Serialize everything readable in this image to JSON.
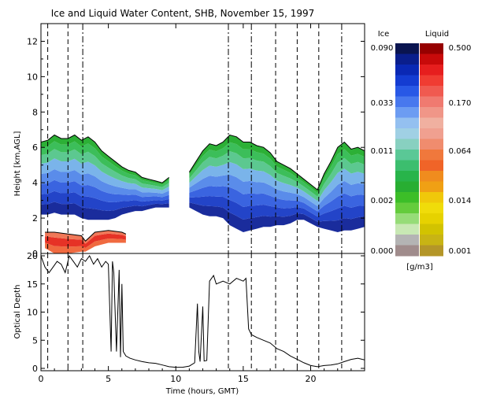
{
  "chart_data": [
    {
      "type": "heatmap",
      "title": "Ice and Liquid Water Content, SHB, November 15, 1997",
      "xlabel": "Time (hours, GMT)",
      "ylabel": "Height [km,AGL]",
      "xlim": [
        0,
        24
      ],
      "ylim": [
        0,
        13
      ],
      "yticks": [
        0,
        2,
        4,
        6,
        8,
        10,
        12
      ],
      "xticks": [
        0,
        5,
        10,
        15,
        20
      ],
      "grid": false,
      "ice_cloud": {
        "time": [
          0.0,
          0.5,
          1.0,
          1.5,
          2.0,
          2.5,
          3.0,
          3.5,
          4.0,
          4.5,
          5.0,
          5.5,
          6.0,
          6.5,
          7.0,
          7.5,
          8.0,
          8.5,
          9.0,
          9.5,
          9.6,
          10.0,
          10.5,
          11.0,
          11.5,
          12.0,
          12.5,
          13.0,
          13.5,
          14.0,
          14.5,
          15.0,
          15.5,
          16.0,
          16.5,
          17.0,
          17.5,
          18.0,
          18.5,
          19.0,
          19.5,
          20.0,
          20.5,
          21.0,
          21.5,
          22.0,
          22.5,
          23.0,
          23.5,
          24.0
        ],
        "top_km": [
          6.3,
          6.4,
          6.7,
          6.5,
          6.5,
          6.7,
          6.4,
          6.6,
          6.3,
          5.8,
          5.5,
          5.2,
          4.9,
          4.7,
          4.6,
          4.3,
          4.2,
          4.1,
          4.0,
          4.3,
          null,
          null,
          null,
          4.6,
          5.2,
          5.8,
          6.2,
          6.1,
          6.3,
          6.7,
          6.6,
          6.3,
          6.3,
          6.1,
          6.0,
          5.7,
          5.2,
          5.0,
          4.8,
          4.5,
          4.2,
          3.9,
          3.6,
          4.5,
          5.2,
          6.0,
          6.3,
          5.9,
          6.0,
          5.8
        ],
        "base_km": [
          2.2,
          2.2,
          2.3,
          2.2,
          2.2,
          2.2,
          2.0,
          1.9,
          1.9,
          1.9,
          1.9,
          2.0,
          2.2,
          2.3,
          2.4,
          2.4,
          2.5,
          2.6,
          2.6,
          2.6,
          null,
          null,
          null,
          2.6,
          2.4,
          2.2,
          2.1,
          2.1,
          2.0,
          1.6,
          1.4,
          1.2,
          1.3,
          1.4,
          1.5,
          1.5,
          1.6,
          1.6,
          1.7,
          1.9,
          1.9,
          1.7,
          1.5,
          1.4,
          1.3,
          1.2,
          1.3,
          1.3,
          1.4,
          1.5
        ]
      },
      "liquid_cloud": {
        "time": [
          0.3,
          1.0,
          2.0,
          3.0,
          3.3,
          4.0,
          5.0,
          6.0,
          6.3
        ],
        "top_km": [
          1.2,
          1.2,
          1.1,
          1.0,
          0.7,
          1.2,
          1.3,
          1.2,
          1.1
        ],
        "base_km": [
          0.3,
          0.0,
          0.0,
          0.1,
          0.1,
          0.4,
          0.6,
          0.6,
          0.6
        ]
      },
      "lidar_dash_lines_hours": [
        0.5,
        2.0,
        3.1,
        13.9,
        15.6,
        17.4,
        19.0,
        20.6,
        22.3
      ]
    },
    {
      "type": "line",
      "xlabel": "Time (hours, GMT)",
      "ylabel": "Optical Depth",
      "xlim": [
        0,
        24
      ],
      "ylim": [
        0,
        20
      ],
      "yticks": [
        0,
        5,
        10,
        15,
        20
      ],
      "xticks": [
        0,
        5,
        10,
        15,
        20
      ],
      "x": [
        0.0,
        0.3,
        0.6,
        0.9,
        1.2,
        1.5,
        1.8,
        2.1,
        2.4,
        2.7,
        3.0,
        3.3,
        3.6,
        3.9,
        4.2,
        4.5,
        4.8,
        5.0,
        5.2,
        5.3,
        5.4,
        5.6,
        5.8,
        5.9,
        6.0,
        6.1,
        6.3,
        6.6,
        7.0,
        7.5,
        8.0,
        8.5,
        9.0,
        9.5,
        10.0,
        10.5,
        11.0,
        11.4,
        11.6,
        11.7,
        11.8,
        12.0,
        12.1,
        12.3,
        12.5,
        12.8,
        13.0,
        13.5,
        14.0,
        14.5,
        15.0,
        15.2,
        15.4,
        15.6,
        16.0,
        16.5,
        17.0,
        17.5,
        18.0,
        18.5,
        19.0,
        19.5,
        20.0,
        20.5,
        21.0,
        21.5,
        22.0,
        22.5,
        23.0,
        23.5,
        24.0
      ],
      "y": [
        20.0,
        18.0,
        17.0,
        18.0,
        19.0,
        18.5,
        17.0,
        20.0,
        19.0,
        18.0,
        19.5,
        19.0,
        20.0,
        18.5,
        19.5,
        18.0,
        19.0,
        18.5,
        3.0,
        19.0,
        17.0,
        3.0,
        17.5,
        2.0,
        15.0,
        3.0,
        2.2,
        1.8,
        1.5,
        1.2,
        1.0,
        0.9,
        0.6,
        0.3,
        0.2,
        0.2,
        0.4,
        1.0,
        11.5,
        3.0,
        1.2,
        11.0,
        1.3,
        1.4,
        15.5,
        16.5,
        15.0,
        15.5,
        15.0,
        16.0,
        15.5,
        16.0,
        7.0,
        6.0,
        5.5,
        5.0,
        4.5,
        3.5,
        3.0,
        2.2,
        1.6,
        1.0,
        0.5,
        0.3,
        0.5,
        0.6,
        0.8,
        1.2,
        1.6,
        1.8,
        1.5
      ]
    }
  ],
  "colorbar": {
    "ice_header": "Ice",
    "liquid_header": "Liquid",
    "ice_labels": [
      "0.090",
      "0.033",
      "0.011",
      "0.002",
      "0.000"
    ],
    "liquid_labels": [
      "0.500",
      "0.170",
      "0.064",
      "0.014",
      "0.001"
    ],
    "units": "[g/m3]",
    "ice_colors": [
      "#0a1450",
      "#0a1e8c",
      "#0a28b4",
      "#143cd2",
      "#2858e6",
      "#4878ee",
      "#6c9cf2",
      "#94c0f0",
      "#a0d0e4",
      "#88d0c0",
      "#5ac896",
      "#3cbe6e",
      "#28b44a",
      "#28ae32",
      "#3cbe28",
      "#64cc3c",
      "#96dc78",
      "#c8e8b4",
      "#b4b4b4",
      "#a08c8c"
    ],
    "liquid_colors": [
      "#960000",
      "#c80a0a",
      "#e61e1e",
      "#f03c32",
      "#f05a50",
      "#f07a70",
      "#f09688",
      "#f0b0a0",
      "#f0a090",
      "#f08c6e",
      "#f0783c",
      "#f06428",
      "#f08c1e",
      "#f0a014",
      "#f0c80a",
      "#f0dc0a",
      "#e6d200",
      "#d2c300",
      "#c8b414",
      "#b49628"
    ]
  }
}
